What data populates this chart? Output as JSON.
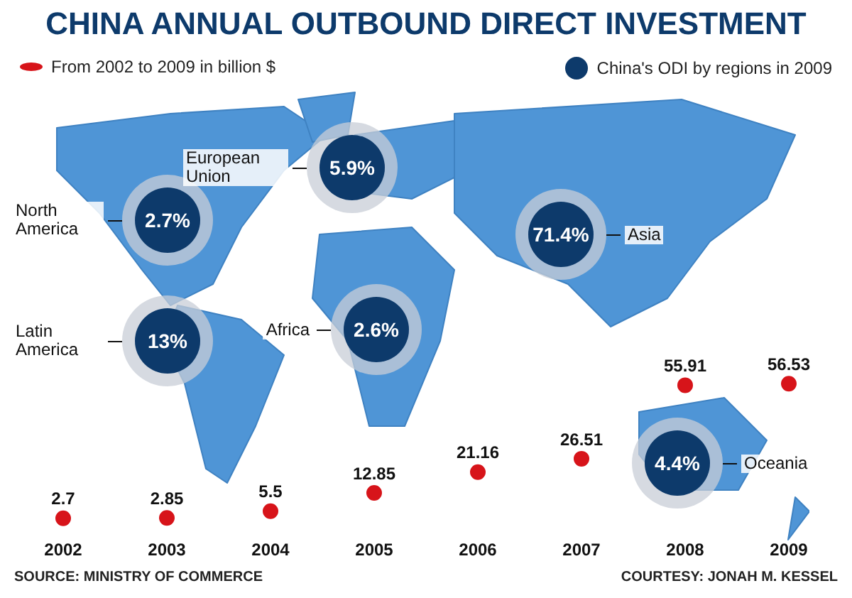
{
  "chart_data": [
    {
      "type": "scatter",
      "title": "CHINA ANNUAL OUTBOUND DIRECT INVESTMENT",
      "categories": [
        "2002",
        "2003",
        "2004",
        "2005",
        "2006",
        "2007",
        "2008",
        "2009"
      ],
      "series": [
        {
          "name": "From 2002 to 2009 in billion $",
          "color": "#d7141a",
          "values": [
            2.7,
            2.85,
            5.5,
            12.85,
            21.16,
            26.51,
            55.91,
            56.53
          ]
        }
      ],
      "marker": "circle",
      "data_labels": true,
      "legend": "top left",
      "annotations": [
        "SOURCE: MINISTRY OF COMMERCE",
        "COURTESY: JONAH M. KESSEL"
      ]
    },
    {
      "type": "other",
      "categories": [
        "North America",
        "European Union",
        "Asia",
        "Latin America",
        "Africa",
        "Oceania"
      ],
      "series": [
        {
          "name": "China's ODI by regions in 2009",
          "color": "#0d3a6b",
          "values": [
            2.7,
            5.9,
            71.4,
            13,
            2.6,
            4.4
          ],
          "value_labels": [
            "2.7%",
            "5.9%",
            "71.4%",
            "13%",
            "2.6%",
            "4.4%"
          ]
        }
      ],
      "legend": "top right"
    }
  ]
}
